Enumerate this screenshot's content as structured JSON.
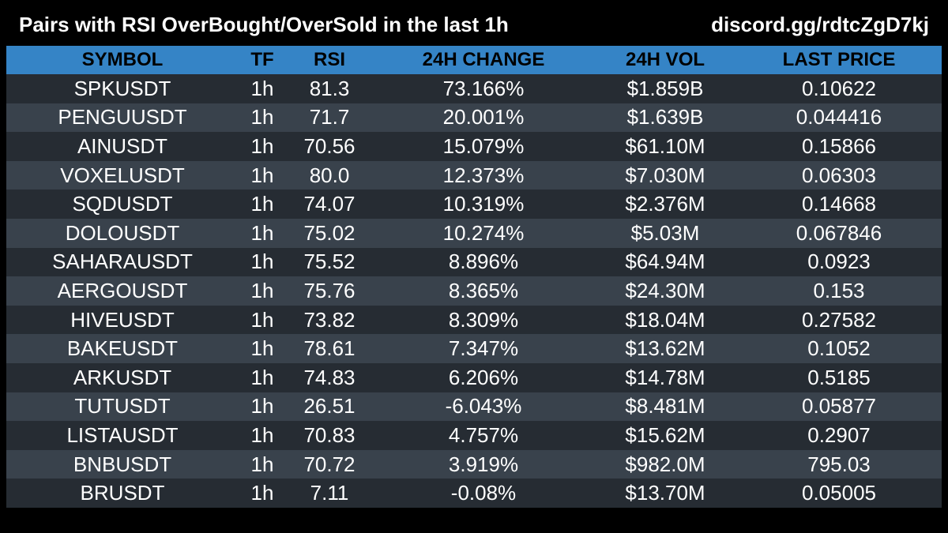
{
  "header": {
    "title": "Pairs with RSI OverBought/OverSold in the last 1h",
    "link": "discord.gg/rdtcZgD7kj"
  },
  "colors": {
    "background": "#000000",
    "header_row": "#3584c6",
    "row_dark": "#262c33",
    "row_light": "#39424c",
    "text": "#ffffff"
  },
  "table": {
    "columns": [
      "SYMBOL",
      "TF",
      "RSI",
      "24H CHANGE",
      "24H VOL",
      "LAST PRICE"
    ],
    "rows": [
      [
        "SPKUSDT",
        "1h",
        "81.3",
        "73.166%",
        "$1.859B",
        "0.10622"
      ],
      [
        "PENGUUSDT",
        "1h",
        "71.7",
        "20.001%",
        "$1.639B",
        "0.044416"
      ],
      [
        "AINUSDT",
        "1h",
        "70.56",
        "15.079%",
        "$61.10M",
        "0.15866"
      ],
      [
        "VOXELUSDT",
        "1h",
        "80.0",
        "12.373%",
        "$7.030M",
        "0.06303"
      ],
      [
        "SQDUSDT",
        "1h",
        "74.07",
        "10.319%",
        "$2.376M",
        "0.14668"
      ],
      [
        "DOLOUSDT",
        "1h",
        "75.02",
        "10.274%",
        "$5.03M",
        "0.067846"
      ],
      [
        "SAHARAUSDT",
        "1h",
        "75.52",
        "8.896%",
        "$64.94M",
        "0.0923"
      ],
      [
        "AERGOUSDT",
        "1h",
        "75.76",
        "8.365%",
        "$24.30M",
        "0.153"
      ],
      [
        "HIVEUSDT",
        "1h",
        "73.82",
        "8.309%",
        "$18.04M",
        "0.27582"
      ],
      [
        "BAKEUSDT",
        "1h",
        "78.61",
        "7.347%",
        "$13.62M",
        "0.1052"
      ],
      [
        "ARKUSDT",
        "1h",
        "74.83",
        "6.206%",
        "$14.78M",
        "0.5185"
      ],
      [
        "TUTUSDT",
        "1h",
        "26.51",
        "-6.043%",
        "$8.481M",
        "0.05877"
      ],
      [
        "LISTAUSDT",
        "1h",
        "70.83",
        "4.757%",
        "$15.62M",
        "0.2907"
      ],
      [
        "BNBUSDT",
        "1h",
        "70.72",
        "3.919%",
        "$982.0M",
        "795.03"
      ],
      [
        "BRUSDT",
        "1h",
        "7.11",
        "-0.08%",
        "$13.70M",
        "0.05005"
      ]
    ]
  }
}
